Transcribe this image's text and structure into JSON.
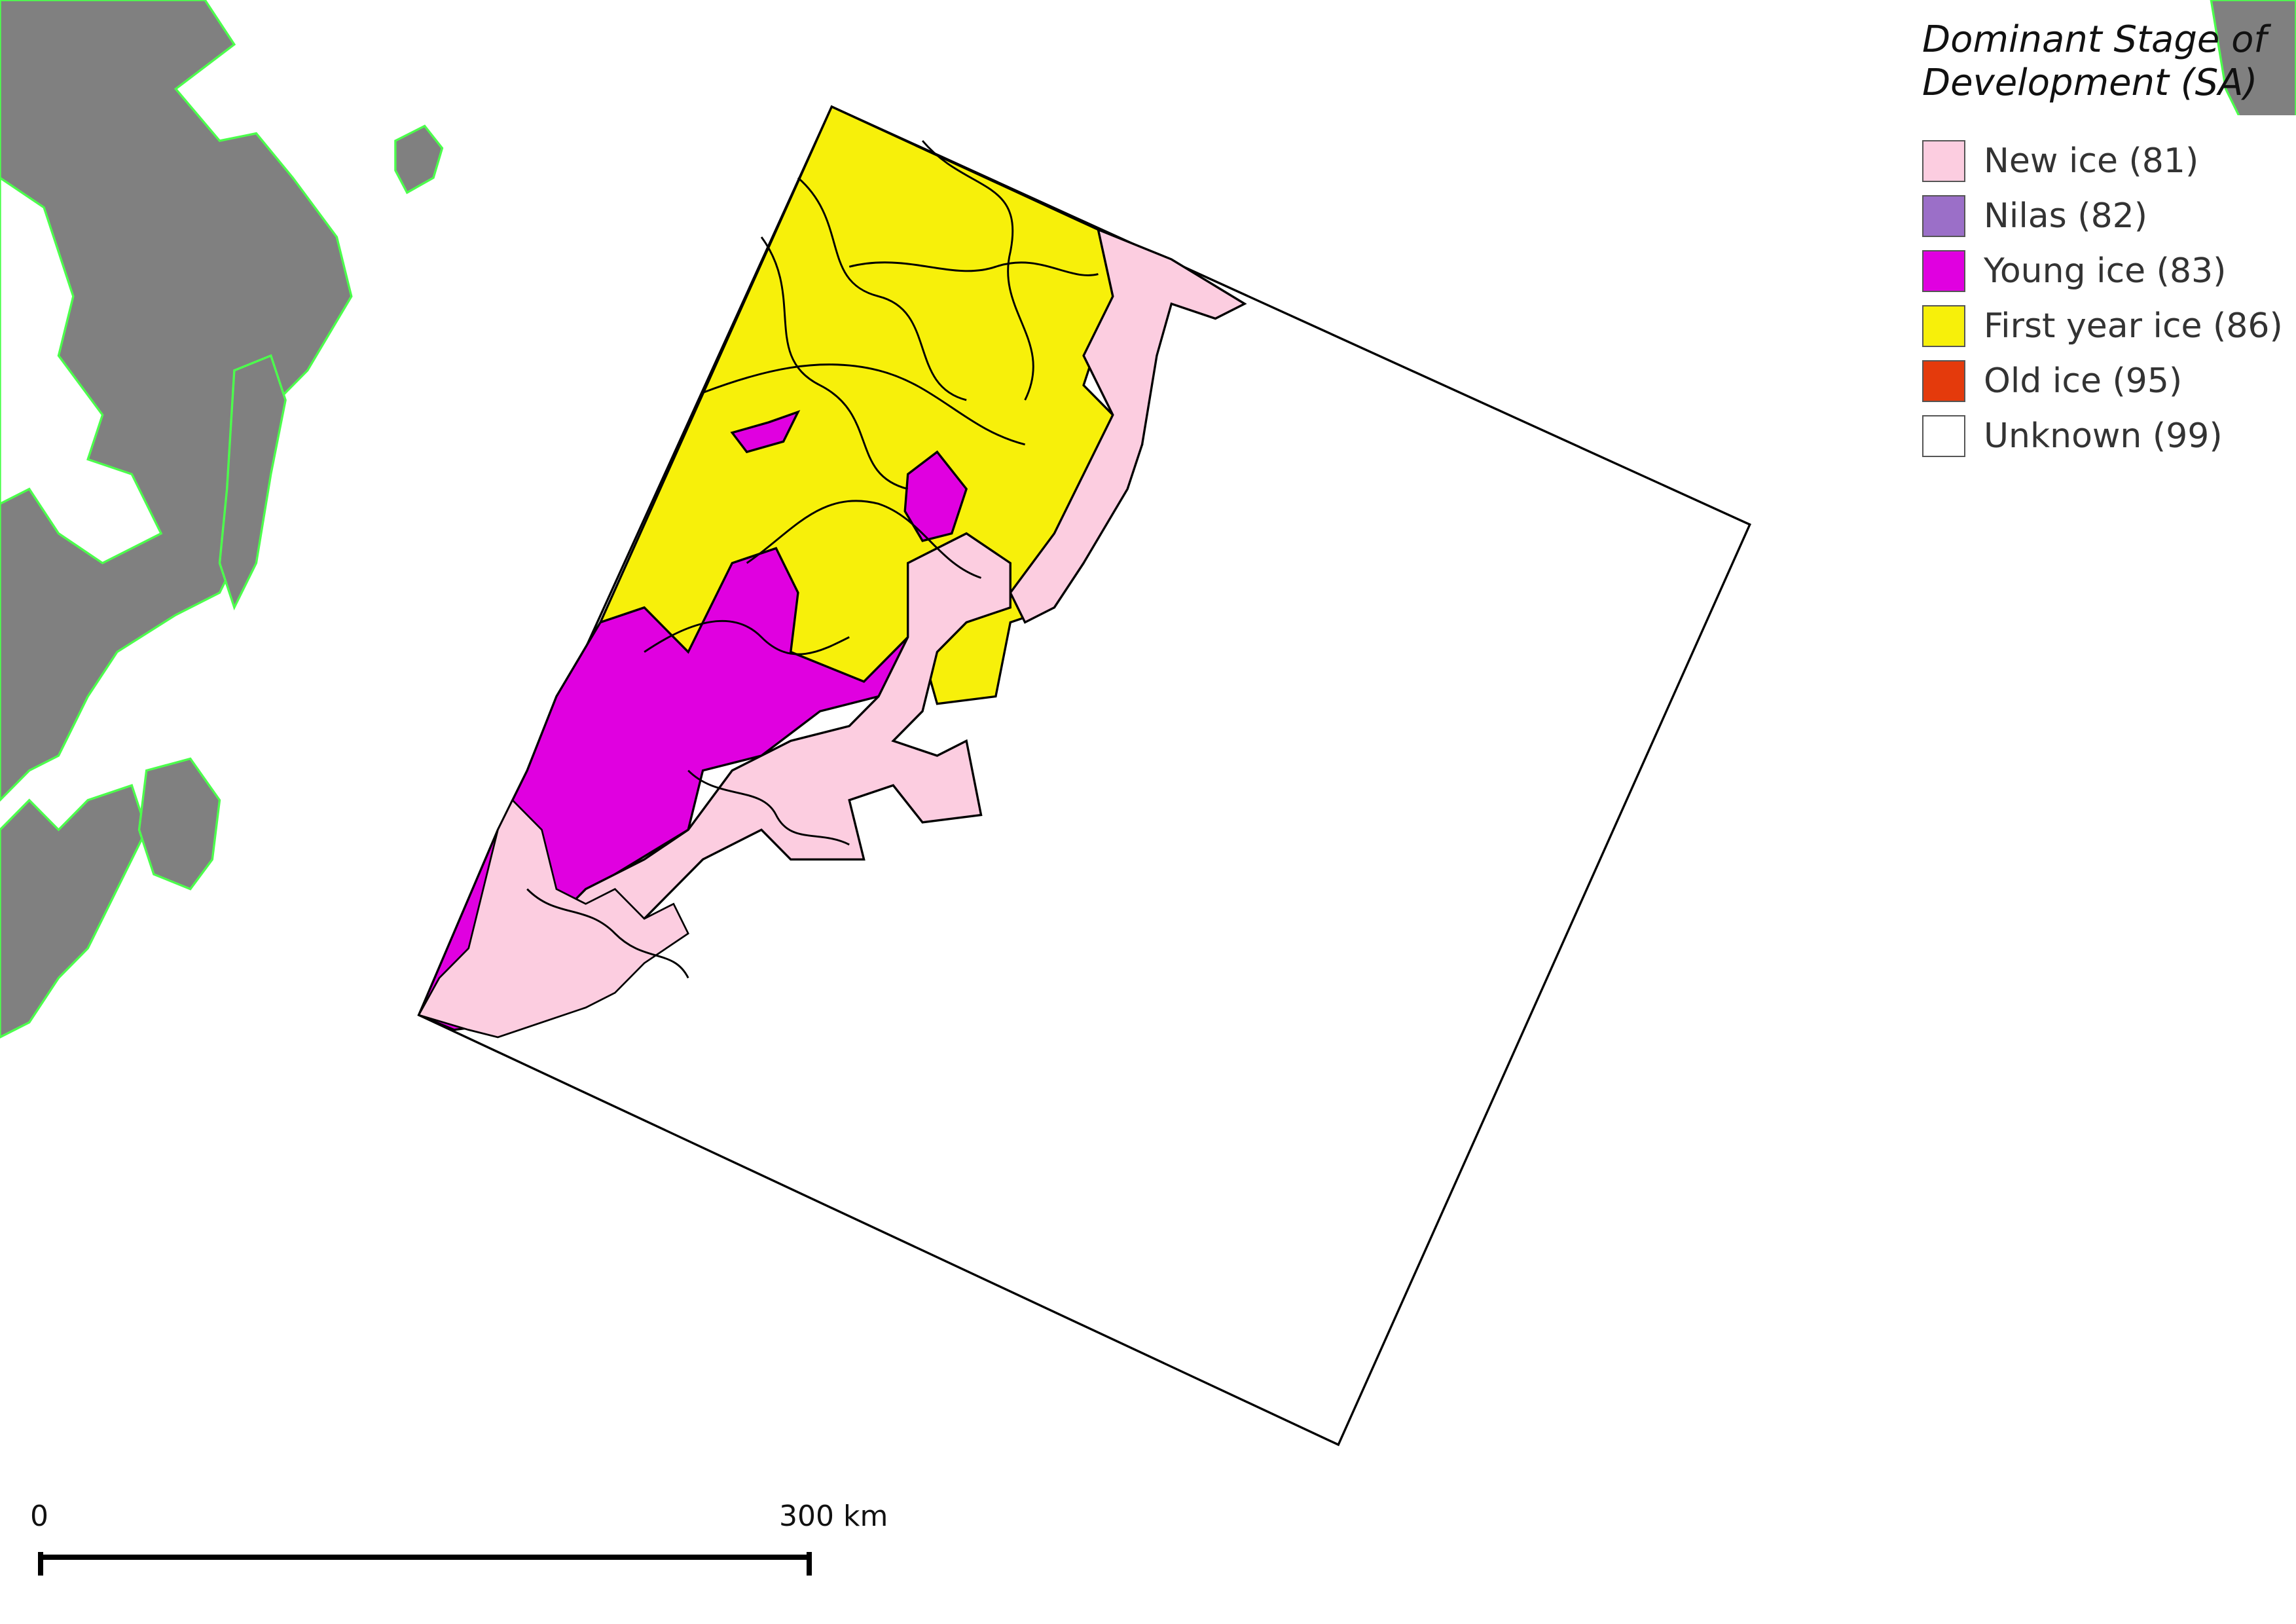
{
  "legend": {
    "title_line1": "Dominant Stage of",
    "title_line2": "Development (SA)",
    "items": [
      {
        "label": "New ice (81)",
        "color": "#fccde0"
      },
      {
        "label": "Nilas (82)",
        "color": "#9b6fc8"
      },
      {
        "label": "Young ice (83)",
        "color": "#e000e0"
      },
      {
        "label": "First year ice (86)",
        "color": "#f7f00a"
      },
      {
        "label": "Old ice (95)",
        "color": "#e43a0c"
      },
      {
        "label": "Unknown (99)",
        "color": "#ffffff"
      }
    ]
  },
  "scalebar": {
    "start_label": "0",
    "end_label": "300 km"
  },
  "map_colors": {
    "land": "#808080",
    "coastline": "#4cff4c",
    "scene_outline": "#000000"
  }
}
